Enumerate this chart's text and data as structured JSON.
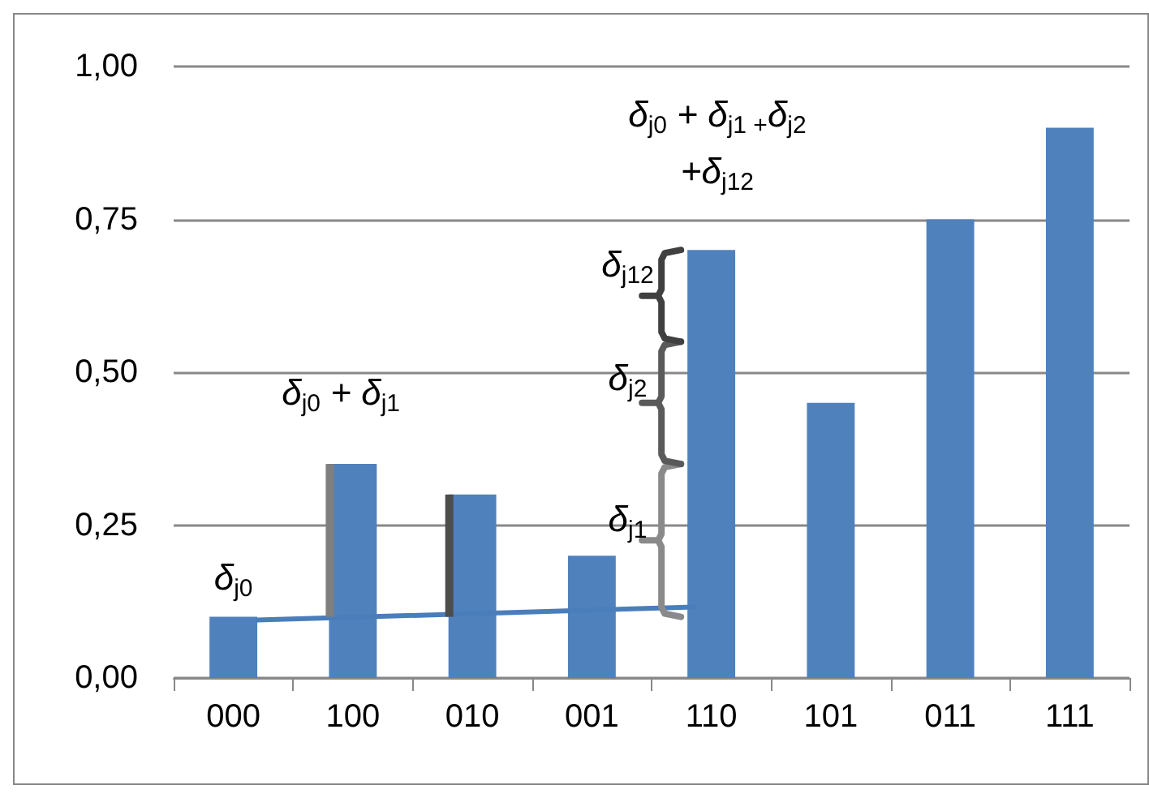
{
  "chart_data": {
    "type": "bar",
    "categories": [
      "000",
      "100",
      "010",
      "001",
      "110",
      "101",
      "011",
      "111"
    ],
    "series": [
      {
        "color": "#4f81bd",
        "values": [
          0.1,
          0.35,
          0.3,
          0.2,
          0.7,
          0.45,
          0.75,
          0.9
        ]
      }
    ],
    "ylim": [
      0,
      1
    ],
    "yticks": [
      {
        "value": 0,
        "label": "0,00"
      },
      {
        "value": 0.25,
        "label": "0,25"
      },
      {
        "value": 0.5,
        "label": "0,50"
      },
      {
        "value": 0.75,
        "label": "0,75"
      },
      {
        "value": 1,
        "label": "1,00"
      }
    ],
    "grid": "y",
    "annotations": [
      "δ$_{j0}$",
      "δ$_{j0}$ + δ$_{j1}$",
      "δ$_{j1}$",
      "δ$_{j2}$",
      "δ$_{j12}$",
      "δ$_{j0}$ + δ$_{j1 +}$δ$_{j2}$\n+δ$_{j12}$"
    ]
  }
}
